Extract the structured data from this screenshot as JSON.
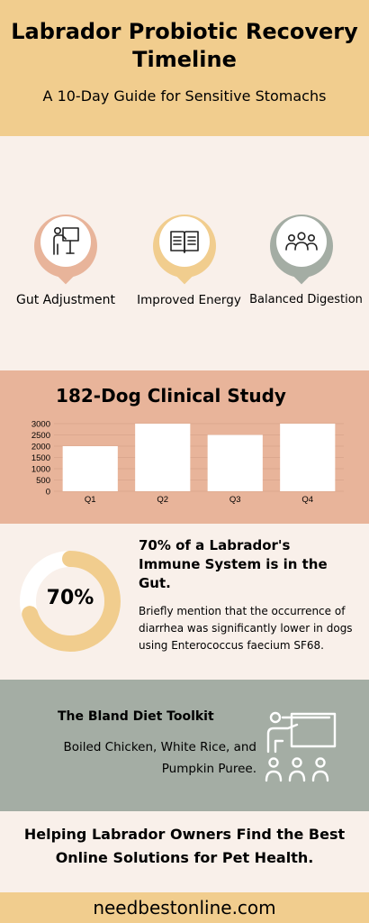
{
  "header": {
    "title": "Labrador Probiotic Recovery Timeline",
    "subtitle": "A 10-Day Guide for Sensitive Stomachs"
  },
  "pins": [
    {
      "label": "Gut Adjustment",
      "icon": "presenter-icon",
      "color": "#e8b49a"
    },
    {
      "label": "Improved Energy",
      "icon": "book-icon",
      "color": "#f1cd8e"
    },
    {
      "label": "Balanced Digestion",
      "icon": "group-icon",
      "color": "#a4ada4"
    }
  ],
  "study": {
    "title": "182-Dog Clinical Study"
  },
  "chart_data": {
    "type": "bar",
    "categories": [
      "Q1",
      "Q2",
      "Q3",
      "Q4"
    ],
    "values": [
      2000,
      3000,
      2500,
      3000
    ],
    "ylim": [
      0,
      3000
    ],
    "yticks": [
      0,
      500,
      1000,
      1500,
      2000,
      2500,
      3000
    ],
    "grid": true,
    "bar_color": "#ffffff"
  },
  "immune": {
    "percent_label": "70%",
    "percent_value": 70,
    "heading": "70% of a Labrador's Immune System is in the Gut.",
    "body": "Briefly mention that the occurrence of diarrhea was significantly lower in dogs using Enterococcus faecium SF68."
  },
  "toolkit": {
    "title": "The Bland Diet Toolkit",
    "body": "Boiled Chicken, White Rice, and Pumpkin Puree.",
    "icon": "classroom-icon"
  },
  "tagline": "Helping Labrador Owners Find the Best Online Solutions for Pet Health.",
  "footer": {
    "url": "needbestonline.com"
  },
  "colors": {
    "header_bg": "#f1cd8e",
    "page_bg": "#f9f0ea",
    "study_bg": "#e8b49a",
    "toolkit_bg": "#a4ada4",
    "donut": "#f1cd8e"
  }
}
